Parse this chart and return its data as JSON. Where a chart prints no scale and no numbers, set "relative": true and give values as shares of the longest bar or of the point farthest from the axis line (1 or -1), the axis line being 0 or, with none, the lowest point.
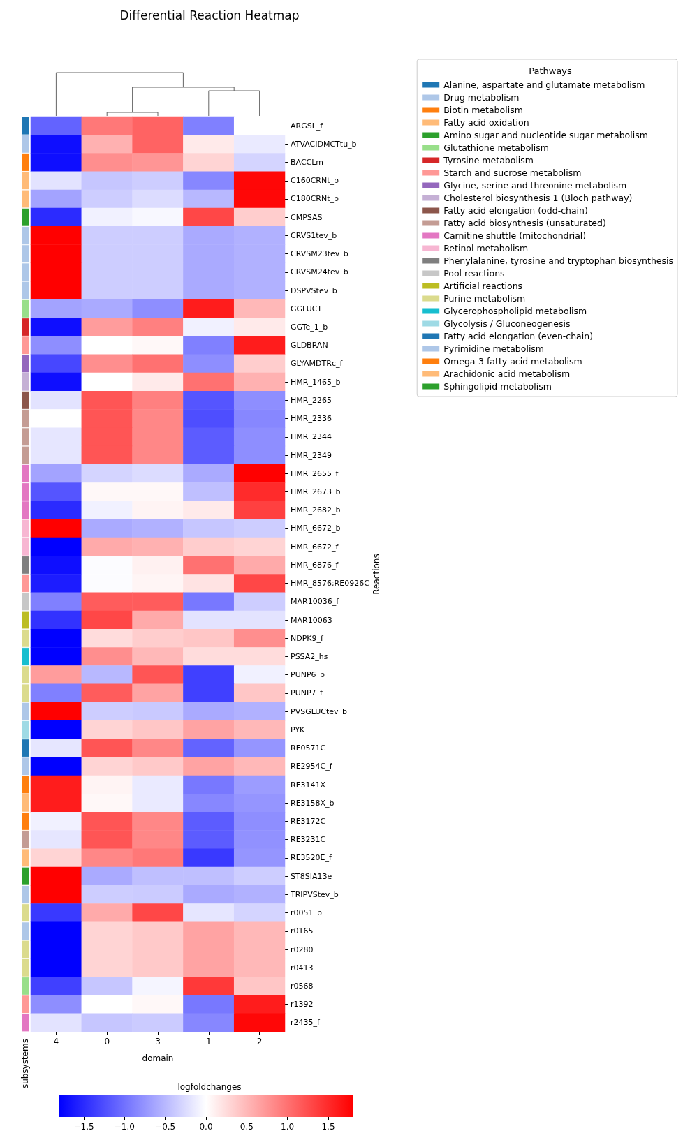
{
  "chart_data": [
    {
      "type": "heatmap",
      "title": "Differential Reaction Heatmap",
      "xlabel": "domain",
      "ylabel": "Reactions",
      "clabel": "logfoldchanges",
      "categories": [
        "4",
        "0",
        "3",
        "1",
        "2"
      ],
      "y_categories": [
        "ARGSL_f",
        "ATVACIDMCTtu_b",
        "BACCLm",
        "C160CRNt_b",
        "C180CRNt_b",
        "CMPSAS",
        "CRVS1tev_b",
        "CRVSM23tev_b",
        "CRVSM24tev_b",
        "DSPVStev_b",
        "GGLUCT",
        "GGTe_1_b",
        "GLDBRAN",
        "GLYAMDTRc_f",
        "HMR_1465_b",
        "HMR_2265",
        "HMR_2336",
        "HMR_2344",
        "HMR_2349",
        "HMR_2655_f",
        "HMR_2673_b",
        "HMR_2682_b",
        "HMR_6672_b",
        "HMR_6672_f",
        "HMR_6876_f",
        "HMR_8576;RE0926C",
        "MAR10036_f",
        "MAR10063",
        "NDPK9_f",
        "PSSA2_hs",
        "PUNP6_b",
        "PUNP7_f",
        "PVSGLUCtev_b",
        "PYK",
        "RE0571C",
        "RE2954C_f",
        "RE3141X",
        "RE3158X_b",
        "RE3172C",
        "RE3231C",
        "RE3520E_f",
        "ST8SIA13e",
        "TRIPVStev_b",
        "r0051_b",
        "r0165",
        "r0280",
        "r0413",
        "r0568",
        "r1392",
        "r2435_f"
      ],
      "cells": [
        [
          -1.1,
          0.95,
          1.1,
          -0.9,
          0.0
        ],
        [
          -1.7,
          0.55,
          1.1,
          0.15,
          -0.15
        ],
        [
          -1.7,
          0.8,
          0.75,
          0.3,
          -0.3
        ],
        [
          -0.2,
          -0.4,
          -0.35,
          -0.85,
          1.75
        ],
        [
          -0.65,
          -0.35,
          -0.25,
          -0.5,
          1.75
        ],
        [
          -1.5,
          -0.1,
          -0.05,
          1.3,
          0.35
        ],
        [
          1.8,
          -0.35,
          -0.35,
          -0.6,
          -0.55
        ],
        [
          1.8,
          -0.35,
          -0.35,
          -0.6,
          -0.55
        ],
        [
          1.8,
          -0.35,
          -0.35,
          -0.6,
          -0.55
        ],
        [
          1.8,
          -0.35,
          -0.35,
          -0.6,
          -0.55
        ],
        [
          -0.65,
          -0.6,
          -0.8,
          1.6,
          0.5
        ],
        [
          -1.7,
          0.7,
          0.9,
          -0.1,
          0.15
        ],
        [
          -0.8,
          0.0,
          0.05,
          -0.9,
          1.6
        ],
        [
          -1.3,
          0.8,
          1.0,
          -0.8,
          0.35
        ],
        [
          -1.7,
          0.0,
          0.15,
          1.0,
          0.55
        ],
        [
          -0.2,
          1.2,
          0.9,
          -1.2,
          -0.8
        ],
        [
          0.0,
          1.2,
          0.85,
          -1.25,
          -0.85
        ],
        [
          -0.18,
          1.2,
          0.85,
          -1.15,
          -0.8
        ],
        [
          -0.18,
          1.2,
          0.85,
          -1.15,
          -0.8
        ],
        [
          -0.65,
          -0.3,
          -0.25,
          -0.6,
          1.8
        ],
        [
          -1.2,
          0.05,
          0.05,
          -0.45,
          1.5
        ],
        [
          -1.5,
          -0.1,
          0.08,
          0.15,
          1.35
        ],
        [
          1.8,
          -0.6,
          -0.55,
          -0.4,
          -0.35
        ],
        [
          -1.8,
          0.6,
          0.55,
          0.35,
          0.3
        ],
        [
          -1.7,
          -0.02,
          0.1,
          1.0,
          0.6
        ],
        [
          -1.6,
          -0.02,
          0.07,
          0.2,
          1.3
        ],
        [
          -0.9,
          1.15,
          1.15,
          -0.95,
          -0.35
        ],
        [
          -1.45,
          1.3,
          0.6,
          -0.2,
          -0.2
        ],
        [
          -1.8,
          0.25,
          0.35,
          0.4,
          0.8
        ],
        [
          -1.8,
          0.8,
          0.5,
          0.25,
          0.25
        ],
        [
          0.7,
          -0.5,
          1.2,
          -1.35,
          -0.1
        ],
        [
          -0.9,
          1.15,
          0.65,
          -1.35,
          0.4
        ],
        [
          1.8,
          -0.35,
          -0.38,
          -0.6,
          -0.55
        ],
        [
          -1.8,
          0.3,
          0.4,
          0.65,
          0.5
        ],
        [
          -0.18,
          1.2,
          0.85,
          -1.1,
          -0.75
        ],
        [
          -1.8,
          0.3,
          0.38,
          0.65,
          0.5
        ],
        [
          1.6,
          0.08,
          -0.15,
          -0.95,
          -0.7
        ],
        [
          1.6,
          0.05,
          -0.15,
          -0.85,
          -0.75
        ],
        [
          -0.1,
          1.2,
          0.85,
          -1.15,
          -0.8
        ],
        [
          -0.18,
          1.2,
          0.85,
          -1.15,
          -0.78
        ],
        [
          0.3,
          0.85,
          0.95,
          -1.4,
          -0.75
        ],
        [
          1.8,
          -0.6,
          -0.45,
          -0.45,
          -0.35
        ],
        [
          1.8,
          -0.35,
          -0.37,
          -0.6,
          -0.55
        ],
        [
          -1.4,
          0.6,
          1.3,
          -0.18,
          -0.3
        ],
        [
          -1.8,
          0.3,
          0.38,
          0.65,
          0.5
        ],
        [
          -1.8,
          0.3,
          0.38,
          0.65,
          0.5
        ],
        [
          -1.8,
          0.3,
          0.38,
          0.65,
          0.5
        ],
        [
          -1.35,
          -0.4,
          -0.07,
          1.4,
          0.4
        ],
        [
          -0.8,
          0.0,
          0.05,
          -0.95,
          1.6
        ],
        [
          -0.2,
          -0.4,
          -0.37,
          -0.85,
          1.75
        ]
      ],
      "clim": [
        -1.8,
        1.8
      ],
      "cticks": [
        {
          "value": -1.5,
          "label": "−1.5"
        },
        {
          "value": -1,
          "label": "−1.0"
        },
        {
          "value": -0.5,
          "label": "−0.5"
        },
        {
          "value": 0,
          "label": "0.0"
        },
        {
          "value": 0.5,
          "label": "0.5"
        },
        {
          "value": 1,
          "label": "1.0"
        },
        {
          "value": 1.5,
          "label": "1.5"
        }
      ]
    },
    {
      "type": "bar",
      "orientation": "horizontal",
      "stacked": true,
      "relative": true,
      "annotations": [
        "subsystems"
      ],
      "legend_title": "Pathways",
      "legend": "top right",
      "categories": [
        null,
        null,
        null,
        null,
        null,
        null,
        null,
        null,
        null,
        null,
        null,
        null,
        null,
        null,
        null,
        null,
        null,
        null,
        null,
        null,
        null,
        null,
        null,
        null,
        null,
        null,
        null,
        null,
        null,
        null,
        null,
        null,
        null,
        null,
        null,
        null,
        null,
        null,
        null,
        null,
        null,
        null,
        null,
        null,
        null,
        null,
        null,
        null,
        null,
        null
      ],
      "series": [
        {
          "name": "Alanine, aspartate and glutamate metabolism",
          "color": "#1f77b4",
          "values": [
            1,
            null,
            null,
            null,
            null,
            null,
            null,
            null,
            null,
            null,
            null,
            null,
            null,
            null,
            null,
            null,
            null,
            null,
            null,
            null,
            null,
            null,
            null,
            null,
            null,
            null,
            null,
            null,
            null,
            null,
            null,
            null,
            null,
            null,
            null,
            null,
            null,
            null,
            null,
            null,
            null,
            null,
            null,
            null,
            null,
            null,
            null,
            null,
            null,
            null
          ]
        },
        {
          "name": "Drug metabolism",
          "color": "#aec7e8",
          "values": [
            null,
            1,
            null,
            null,
            null,
            null,
            1,
            1,
            1,
            1,
            null,
            null,
            null,
            null,
            null,
            null,
            null,
            null,
            null,
            null,
            null,
            null,
            null,
            null,
            null,
            null,
            null,
            null,
            null,
            null,
            null,
            null,
            1,
            null,
            null,
            null,
            null,
            null,
            null,
            null,
            null,
            null,
            1,
            null,
            null,
            null,
            null,
            null,
            null,
            null
          ]
        },
        {
          "name": "Biotin metabolism",
          "color": "#ff7f0e",
          "values": [
            null,
            null,
            1,
            null,
            null,
            null,
            null,
            null,
            null,
            null,
            null,
            null,
            null,
            null,
            null,
            null,
            null,
            null,
            null,
            null,
            null,
            null,
            null,
            null,
            null,
            null,
            null,
            null,
            null,
            null,
            null,
            null,
            null,
            null,
            null,
            null,
            null,
            null,
            null,
            null,
            null,
            null,
            null,
            null,
            null,
            null,
            null,
            null,
            null,
            null
          ]
        },
        {
          "name": "Fatty acid oxidation",
          "color": "#ffbb78",
          "values": [
            null,
            null,
            null,
            1,
            1,
            null,
            null,
            null,
            null,
            null,
            null,
            null,
            null,
            null,
            null,
            null,
            null,
            null,
            null,
            null,
            null,
            null,
            null,
            null,
            null,
            null,
            null,
            null,
            null,
            null,
            null,
            null,
            null,
            null,
            null,
            null,
            null,
            null,
            null,
            null,
            null,
            null,
            null,
            null,
            null,
            null,
            null,
            null,
            null,
            null
          ]
        },
        {
          "name": "Amino sugar and nucleotide sugar metabolism",
          "color": "#2ca02c",
          "values": [
            null,
            null,
            null,
            null,
            null,
            1,
            null,
            null,
            null,
            null,
            null,
            null,
            null,
            null,
            null,
            null,
            null,
            null,
            null,
            null,
            null,
            null,
            null,
            null,
            null,
            null,
            null,
            null,
            null,
            null,
            null,
            null,
            null,
            null,
            null,
            null,
            null,
            null,
            null,
            null,
            null,
            null,
            null,
            null,
            null,
            null,
            null,
            null,
            null,
            null
          ]
        },
        {
          "name": "Glutathione metabolism",
          "color": "#98df8a",
          "values": [
            null,
            null,
            null,
            null,
            null,
            null,
            null,
            null,
            null,
            null,
            1,
            null,
            null,
            null,
            null,
            null,
            null,
            null,
            null,
            null,
            null,
            null,
            null,
            null,
            null,
            null,
            null,
            null,
            null,
            null,
            null,
            null,
            null,
            null,
            null,
            null,
            null,
            null,
            null,
            null,
            null,
            null,
            null,
            null,
            null,
            null,
            null,
            1,
            null,
            null
          ]
        },
        {
          "name": "Tyrosine metabolism",
          "color": "#d62728",
          "values": [
            null,
            null,
            null,
            null,
            null,
            null,
            null,
            null,
            null,
            null,
            null,
            1,
            null,
            null,
            null,
            null,
            null,
            null,
            null,
            null,
            null,
            null,
            null,
            null,
            null,
            null,
            null,
            null,
            null,
            null,
            null,
            null,
            null,
            null,
            null,
            null,
            null,
            null,
            null,
            null,
            null,
            null,
            null,
            null,
            null,
            null,
            null,
            null,
            null,
            null
          ]
        },
        {
          "name": "Starch and sucrose metabolism",
          "color": "#ff9896",
          "values": [
            null,
            null,
            null,
            null,
            null,
            null,
            null,
            null,
            null,
            null,
            null,
            null,
            1,
            null,
            null,
            null,
            null,
            null,
            null,
            null,
            null,
            null,
            null,
            null,
            null,
            1,
            null,
            null,
            null,
            null,
            null,
            null,
            null,
            null,
            null,
            null,
            null,
            null,
            null,
            null,
            null,
            null,
            null,
            null,
            null,
            null,
            null,
            null,
            1,
            null
          ]
        },
        {
          "name": "Glycine, serine and threonine metabolism",
          "color": "#9467bd",
          "values": [
            null,
            null,
            null,
            null,
            null,
            null,
            null,
            null,
            null,
            null,
            null,
            null,
            null,
            1,
            null,
            null,
            null,
            null,
            null,
            null,
            null,
            null,
            null,
            null,
            null,
            null,
            null,
            null,
            null,
            null,
            null,
            null,
            null,
            null,
            null,
            null,
            null,
            null,
            null,
            null,
            null,
            null,
            null,
            null,
            null,
            null,
            null,
            null,
            null,
            null
          ]
        },
        {
          "name": "Cholesterol biosynthesis 1 (Bloch pathway)",
          "color": "#c5b0d5",
          "values": [
            null,
            null,
            null,
            null,
            null,
            null,
            null,
            null,
            null,
            null,
            null,
            null,
            null,
            null,
            1,
            null,
            null,
            null,
            null,
            null,
            null,
            null,
            null,
            null,
            null,
            null,
            null,
            null,
            null,
            null,
            null,
            null,
            null,
            null,
            null,
            null,
            null,
            null,
            null,
            null,
            null,
            null,
            null,
            null,
            null,
            null,
            null,
            null,
            null,
            null
          ]
        },
        {
          "name": "Fatty acid elongation (odd-chain)",
          "color": "#8c564b",
          "values": [
            null,
            null,
            null,
            null,
            null,
            null,
            null,
            null,
            null,
            null,
            null,
            null,
            null,
            null,
            null,
            1,
            null,
            null,
            null,
            null,
            null,
            null,
            null,
            null,
            null,
            null,
            null,
            null,
            null,
            null,
            null,
            null,
            null,
            null,
            null,
            null,
            null,
            null,
            null,
            null,
            null,
            null,
            null,
            null,
            null,
            null,
            null,
            null,
            null,
            null
          ]
        },
        {
          "name": "Fatty acid biosynthesis (unsaturated)",
          "color": "#c49c94",
          "values": [
            null,
            null,
            null,
            null,
            null,
            null,
            null,
            null,
            null,
            null,
            null,
            null,
            null,
            null,
            null,
            null,
            1,
            1,
            1,
            null,
            null,
            null,
            null,
            null,
            null,
            null,
            null,
            null,
            null,
            null,
            null,
            null,
            null,
            null,
            null,
            null,
            null,
            null,
            null,
            1,
            null,
            null,
            null,
            null,
            null,
            null,
            null,
            null,
            null,
            null
          ]
        },
        {
          "name": "Carnitine shuttle (mitochondrial)",
          "color": "#e377c2",
          "values": [
            null,
            null,
            null,
            null,
            null,
            null,
            null,
            null,
            null,
            null,
            null,
            null,
            null,
            null,
            null,
            null,
            null,
            null,
            null,
            1,
            1,
            1,
            null,
            null,
            null,
            null,
            null,
            null,
            null,
            null,
            null,
            null,
            null,
            null,
            null,
            null,
            null,
            null,
            null,
            null,
            null,
            null,
            null,
            null,
            null,
            null,
            null,
            null,
            null,
            1
          ]
        },
        {
          "name": "Retinol metabolism",
          "color": "#f7b6d2",
          "values": [
            null,
            null,
            null,
            null,
            null,
            null,
            null,
            null,
            null,
            null,
            null,
            null,
            null,
            null,
            null,
            null,
            null,
            null,
            null,
            null,
            null,
            null,
            1,
            1,
            null,
            null,
            null,
            null,
            null,
            null,
            null,
            null,
            null,
            null,
            null,
            null,
            null,
            null,
            null,
            null,
            null,
            null,
            null,
            null,
            null,
            null,
            null,
            null,
            null,
            null
          ]
        },
        {
          "name": "Phenylalanine, tyrosine and tryptophan biosynthesis",
          "color": "#7f7f7f",
          "values": [
            null,
            null,
            null,
            null,
            null,
            null,
            null,
            null,
            null,
            null,
            null,
            null,
            null,
            null,
            null,
            null,
            null,
            null,
            null,
            null,
            null,
            null,
            null,
            null,
            1,
            null,
            null,
            null,
            null,
            null,
            null,
            null,
            null,
            null,
            null,
            null,
            null,
            null,
            null,
            null,
            null,
            null,
            null,
            null,
            null,
            null,
            null,
            null,
            null,
            null
          ]
        },
        {
          "name": "Pool reactions",
          "color": "#c7c7c7",
          "values": [
            null,
            null,
            null,
            null,
            null,
            null,
            null,
            null,
            null,
            null,
            null,
            null,
            null,
            null,
            null,
            null,
            null,
            null,
            null,
            null,
            null,
            null,
            null,
            null,
            null,
            null,
            1,
            null,
            null,
            null,
            null,
            null,
            null,
            null,
            null,
            null,
            null,
            null,
            null,
            null,
            null,
            null,
            null,
            null,
            null,
            null,
            null,
            null,
            null,
            null
          ]
        },
        {
          "name": "Artificial reactions",
          "color": "#bcbd22",
          "values": [
            null,
            null,
            null,
            null,
            null,
            null,
            null,
            null,
            null,
            null,
            null,
            null,
            null,
            null,
            null,
            null,
            null,
            null,
            null,
            null,
            null,
            null,
            null,
            null,
            null,
            null,
            null,
            1,
            null,
            null,
            null,
            null,
            null,
            null,
            null,
            null,
            null,
            null,
            null,
            null,
            null,
            null,
            null,
            null,
            null,
            null,
            null,
            null,
            null,
            null
          ]
        },
        {
          "name": "Purine metabolism",
          "color": "#dbdb8d",
          "values": [
            null,
            null,
            null,
            null,
            null,
            null,
            null,
            null,
            null,
            null,
            null,
            null,
            null,
            null,
            null,
            null,
            null,
            null,
            null,
            null,
            null,
            null,
            null,
            null,
            null,
            null,
            null,
            null,
            1,
            null,
            1,
            1,
            null,
            null,
            null,
            null,
            null,
            null,
            null,
            null,
            null,
            null,
            null,
            1,
            null,
            1,
            1,
            null,
            null,
            null
          ]
        },
        {
          "name": "Glycerophospholipid metabolism",
          "color": "#17becf",
          "values": [
            null,
            null,
            null,
            null,
            null,
            null,
            null,
            null,
            null,
            null,
            null,
            null,
            null,
            null,
            null,
            null,
            null,
            null,
            null,
            null,
            null,
            null,
            null,
            null,
            null,
            null,
            null,
            null,
            null,
            1,
            null,
            null,
            null,
            null,
            null,
            null,
            null,
            null,
            null,
            null,
            null,
            null,
            null,
            null,
            null,
            null,
            null,
            null,
            null,
            null
          ]
        },
        {
          "name": "Glycolysis / Gluconeogenesis",
          "color": "#9edae5",
          "values": [
            null,
            null,
            null,
            null,
            null,
            null,
            null,
            null,
            null,
            null,
            null,
            null,
            null,
            null,
            null,
            null,
            null,
            null,
            null,
            null,
            null,
            null,
            null,
            null,
            null,
            null,
            null,
            null,
            null,
            null,
            null,
            null,
            null,
            1,
            null,
            null,
            null,
            null,
            null,
            null,
            null,
            null,
            null,
            null,
            null,
            null,
            null,
            null,
            null,
            null
          ]
        },
        {
          "name": "Fatty acid elongation (even-chain)",
          "color": "#1f77b4",
          "values": [
            null,
            null,
            null,
            null,
            null,
            null,
            null,
            null,
            null,
            null,
            null,
            null,
            null,
            null,
            null,
            null,
            null,
            null,
            null,
            null,
            null,
            null,
            null,
            null,
            null,
            null,
            null,
            null,
            null,
            null,
            null,
            null,
            null,
            null,
            1,
            null,
            null,
            null,
            null,
            null,
            null,
            null,
            null,
            null,
            null,
            null,
            null,
            null,
            null,
            null
          ]
        },
        {
          "name": "Pyrimidine metabolism",
          "color": "#aec7e8",
          "values": [
            null,
            null,
            null,
            null,
            null,
            null,
            null,
            null,
            null,
            null,
            null,
            null,
            null,
            null,
            null,
            null,
            null,
            null,
            null,
            null,
            null,
            null,
            null,
            null,
            null,
            null,
            null,
            null,
            null,
            null,
            null,
            null,
            null,
            null,
            null,
            1,
            null,
            null,
            null,
            null,
            null,
            null,
            null,
            null,
            1,
            null,
            null,
            null,
            null,
            null
          ]
        },
        {
          "name": "Omega-3 fatty acid metabolism",
          "color": "#ff7f0e",
          "values": [
            null,
            null,
            null,
            null,
            null,
            null,
            null,
            null,
            null,
            null,
            null,
            null,
            null,
            null,
            null,
            null,
            null,
            null,
            null,
            null,
            null,
            null,
            null,
            null,
            null,
            null,
            null,
            null,
            null,
            null,
            null,
            null,
            null,
            null,
            null,
            null,
            1,
            null,
            1,
            null,
            null,
            null,
            null,
            null,
            null,
            null,
            null,
            null,
            null,
            null
          ]
        },
        {
          "name": "Arachidonic acid metabolism",
          "color": "#ffbb78",
          "values": [
            null,
            null,
            null,
            null,
            null,
            null,
            null,
            null,
            null,
            null,
            null,
            null,
            null,
            null,
            null,
            null,
            null,
            null,
            null,
            null,
            null,
            null,
            null,
            null,
            null,
            null,
            null,
            null,
            null,
            null,
            null,
            null,
            null,
            null,
            null,
            null,
            null,
            1,
            null,
            null,
            1,
            null,
            null,
            null,
            null,
            null,
            null,
            null,
            null,
            null
          ]
        },
        {
          "name": "Sphingolipid metabolism",
          "color": "#2ca02c",
          "values": [
            null,
            null,
            null,
            null,
            null,
            null,
            null,
            null,
            null,
            null,
            null,
            null,
            null,
            null,
            null,
            null,
            null,
            null,
            null,
            null,
            null,
            null,
            null,
            null,
            null,
            null,
            null,
            null,
            null,
            null,
            null,
            null,
            null,
            null,
            null,
            null,
            null,
            null,
            null,
            null,
            null,
            1,
            null,
            null,
            null,
            null,
            null,
            null,
            null,
            null
          ]
        }
      ]
    }
  ]
}
